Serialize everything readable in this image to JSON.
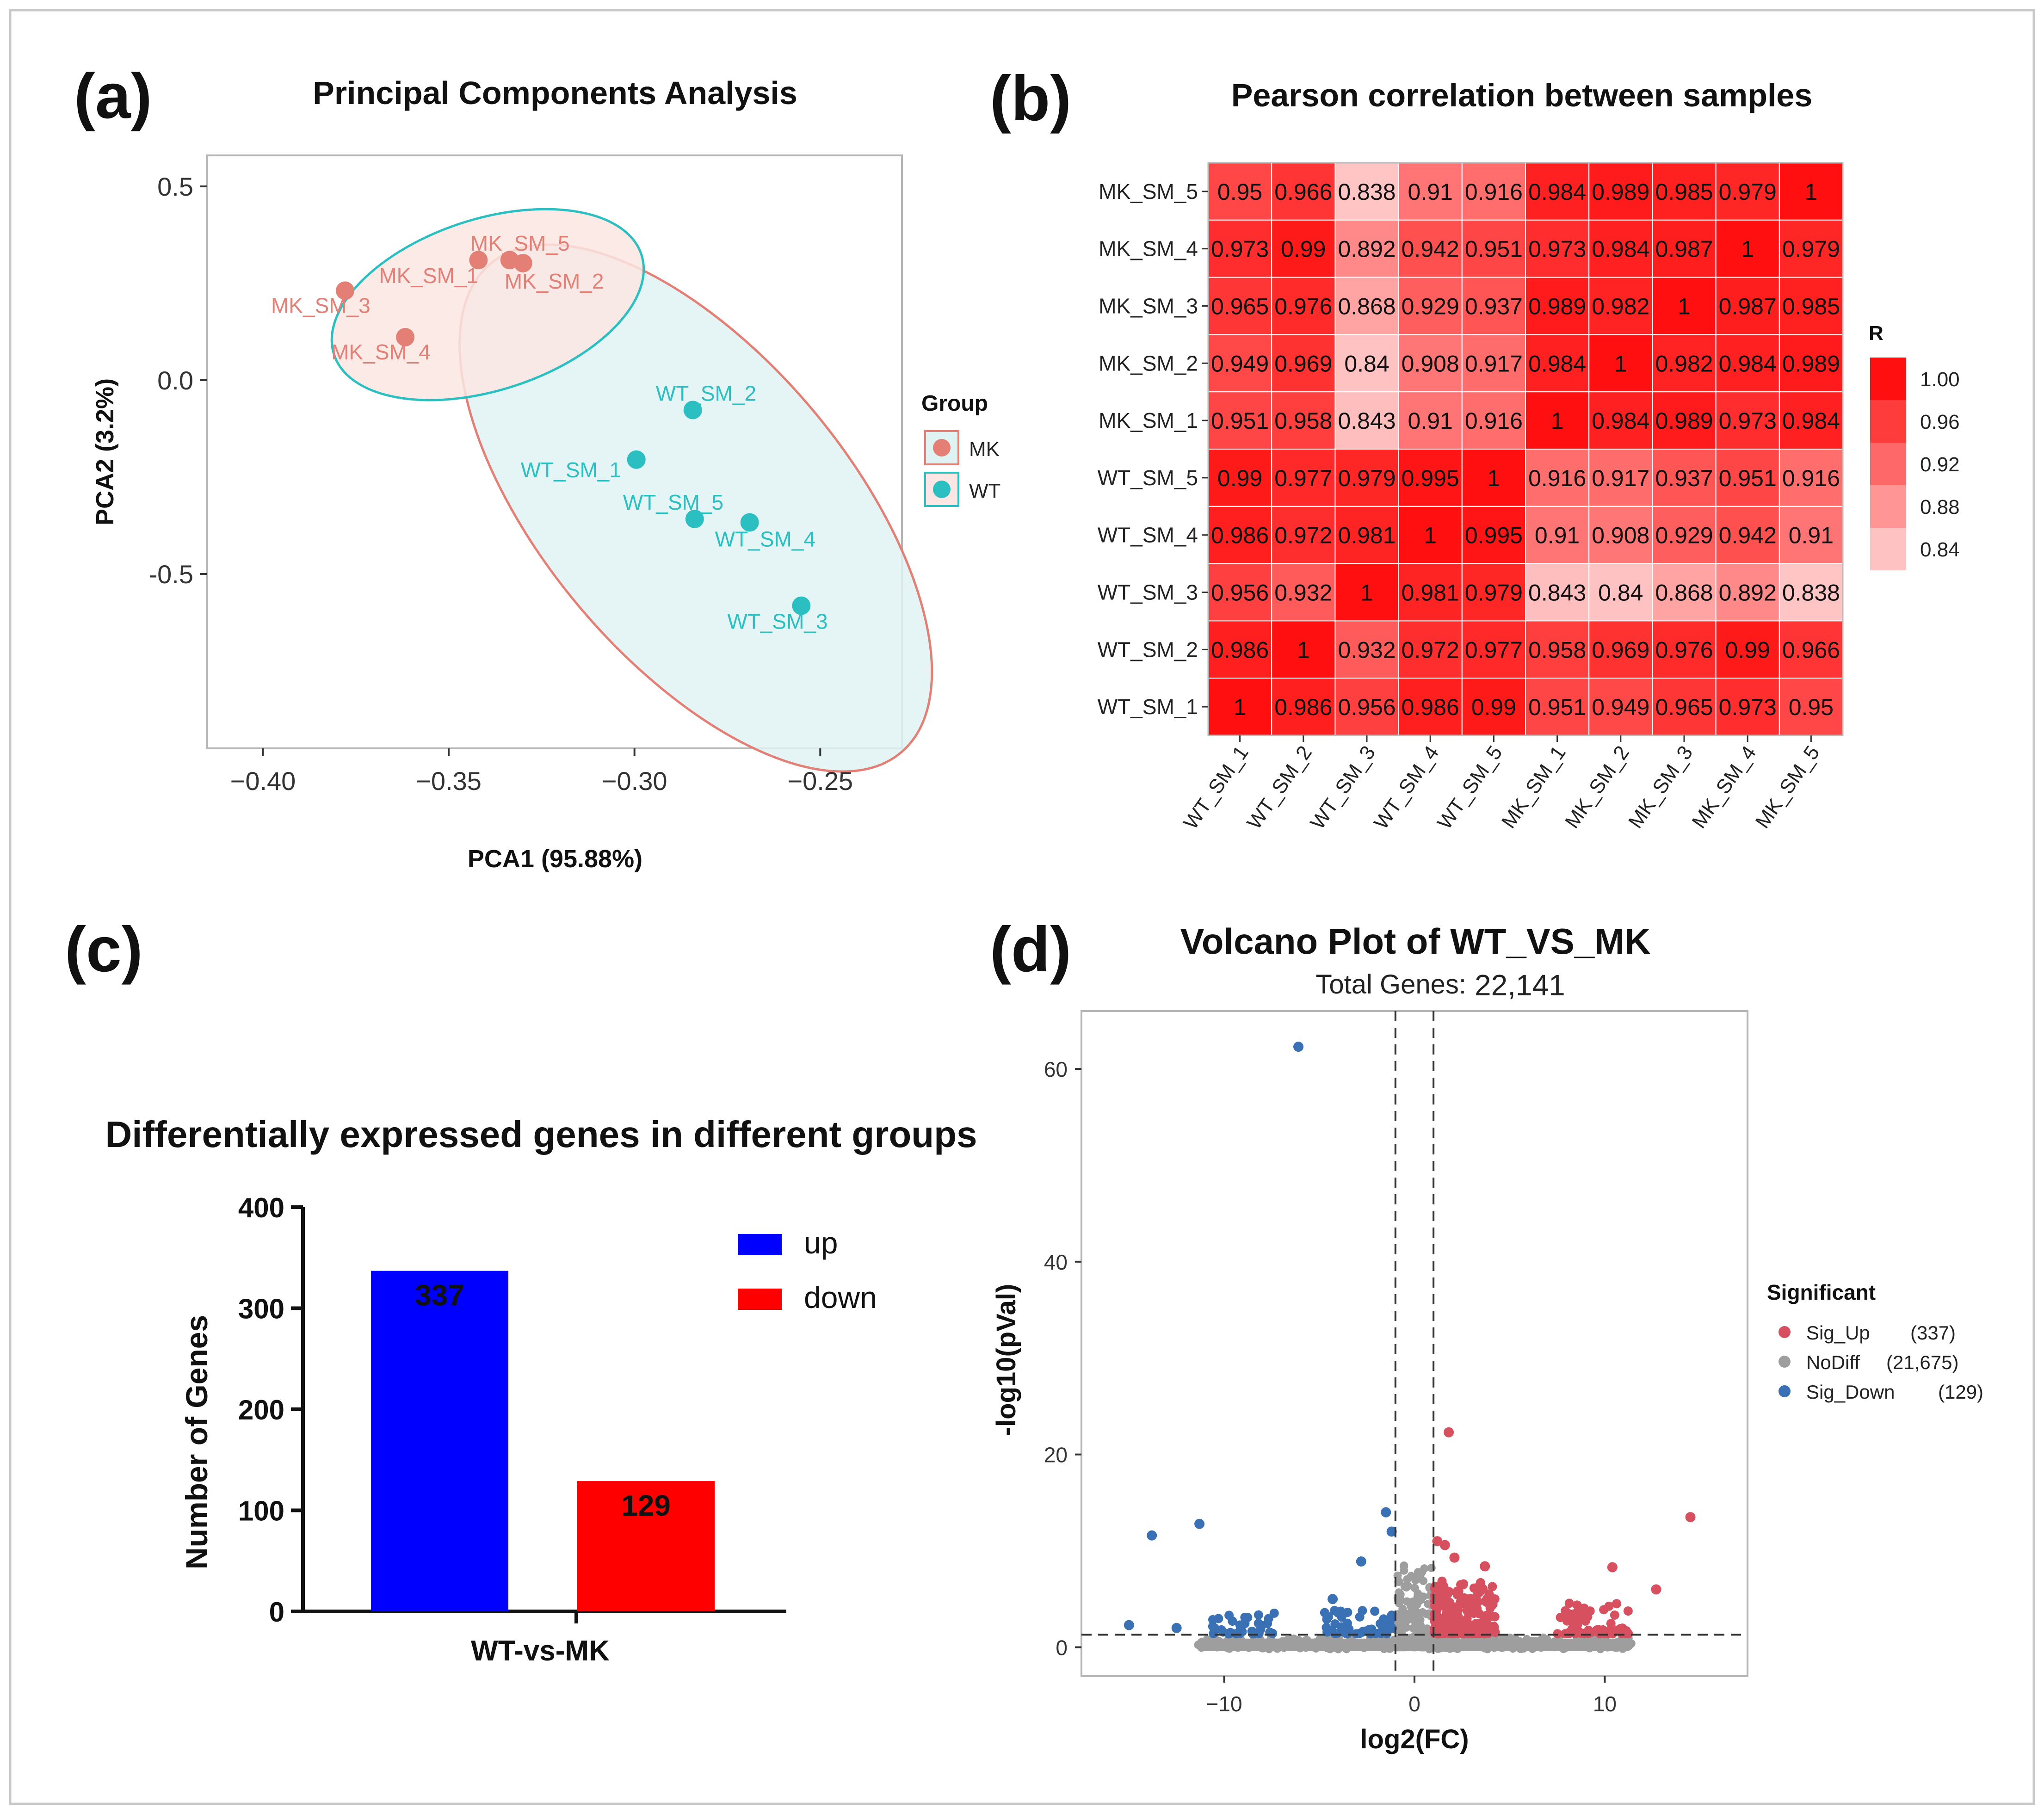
{
  "panels": {
    "a": {
      "label": "(a)",
      "chart_data": {
        "type": "scatter",
        "title": "Principal Components Analysis",
        "xlabel": "PCA1 (95.88%)",
        "ylabel": "PCA2 (3.2%)",
        "xlim": [
          -0.415,
          -0.228
        ],
        "ylim": [
          -0.95,
          0.58
        ],
        "xticks": [
          -0.4,
          -0.35,
          -0.3,
          -0.25
        ],
        "xtick_labels": [
          "−0.40",
          "−0.35",
          "−0.30",
          "−0.25"
        ],
        "yticks": [
          0.5,
          0.0,
          -0.5
        ],
        "ytick_labels": [
          "0.5",
          "0.0",
          "-0.5"
        ],
        "legend_title": "Group",
        "series": [
          {
            "name": "WT",
            "color": "#2bbfc1",
            "fill": "#fbe6e3",
            "points": [
              {
                "label": "WT_SM_1",
                "x": -0.2995,
                "y": -0.205
              },
              {
                "label": "WT_SM_2",
                "x": -0.2843,
                "y": -0.077
              },
              {
                "label": "WT_SM_3",
                "x": -0.2551,
                "y": -0.582
              },
              {
                "label": "WT_SM_4",
                "x": -0.269,
                "y": -0.367
              },
              {
                "label": "WT_SM_5",
                "x": -0.2838,
                "y": -0.358
              }
            ]
          },
          {
            "name": "MK",
            "color": "#e47f76",
            "fill": "#e0f3f3",
            "points": [
              {
                "label": "MK_SM_1",
                "x": -0.342,
                "y": 0.31
              },
              {
                "label": "MK_SM_2",
                "x": -0.33,
                "y": 0.302
              },
              {
                "label": "MK_SM_3",
                "x": -0.3779,
                "y": 0.231
              },
              {
                "label": "MK_SM_4",
                "x": -0.3617,
                "y": 0.111
              },
              {
                "label": "MK_SM_5",
                "x": -0.3336,
                "y": 0.31
              }
            ]
          }
        ]
      }
    },
    "b": {
      "label": "(b)",
      "chart_data": {
        "type": "heatmap",
        "title": "Pearson correlation between samples",
        "legend_title": "R",
        "legend_ticks": [
          "1.00",
          "0.96",
          "0.92",
          "0.88",
          "0.84"
        ],
        "rows": [
          "MK_SM_5",
          "MK_SM_4",
          "MK_SM_3",
          "MK_SM_2",
          "MK_SM_1",
          "WT_SM_5",
          "WT_SM_4",
          "WT_SM_3",
          "WT_SM_2",
          "WT_SM_1"
        ],
        "cols": [
          "WT_SM_1",
          "WT_SM_2",
          "WT_SM_3",
          "WT_SM_4",
          "WT_SM_5",
          "MK_SM_1",
          "MK_SM_2",
          "MK_SM_3",
          "MK_SM_4",
          "MK_SM_5"
        ],
        "values": [
          [
            "0.95",
            "0.966",
            "0.838",
            "0.91",
            "0.916",
            "0.984",
            "0.989",
            "0.985",
            "0.979",
            "1"
          ],
          [
            "0.973",
            "0.99",
            "0.892",
            "0.942",
            "0.951",
            "0.973",
            "0.984",
            "0.987",
            "1",
            "0.979"
          ],
          [
            "0.965",
            "0.976",
            "0.868",
            "0.929",
            "0.937",
            "0.989",
            "0.982",
            "1",
            "0.987",
            "0.985"
          ],
          [
            "0.949",
            "0.969",
            "0.84",
            "0.908",
            "0.917",
            "0.984",
            "1",
            "0.982",
            "0.984",
            "0.989"
          ],
          [
            "0.951",
            "0.958",
            "0.843",
            "0.91",
            "0.916",
            "1",
            "0.984",
            "0.989",
            "0.973",
            "0.984"
          ],
          [
            "0.99",
            "0.977",
            "0.979",
            "0.995",
            "1",
            "0.916",
            "0.917",
            "0.937",
            "0.951",
            "0.916"
          ],
          [
            "0.986",
            "0.972",
            "0.981",
            "1",
            "0.995",
            "0.91",
            "0.908",
            "0.929",
            "0.942",
            "0.91"
          ],
          [
            "0.956",
            "0.932",
            "1",
            "0.981",
            "0.979",
            "0.843",
            "0.84",
            "0.868",
            "0.892",
            "0.838"
          ],
          [
            "0.986",
            "1",
            "0.932",
            "0.972",
            "0.977",
            "0.958",
            "0.969",
            "0.976",
            "0.99",
            "0.966"
          ],
          [
            "1",
            "0.986",
            "0.956",
            "0.986",
            "0.99",
            "0.951",
            "0.949",
            "0.965",
            "0.973",
            "0.95"
          ]
        ]
      }
    },
    "c": {
      "label": "(c)",
      "chart_data": {
        "type": "bar",
        "title": "Differentially expressed genes in different groups",
        "ylabel": "Number of Genes",
        "xlabel": "WT-vs-MK",
        "ylim": [
          0,
          400
        ],
        "yticks": [
          0,
          100,
          200,
          300,
          400
        ],
        "ytick_labels": [
          "0",
          "100",
          "200",
          "300",
          "400"
        ],
        "series": [
          {
            "name": "up",
            "value": 337,
            "value_label": "337",
            "color": "#0000ff"
          },
          {
            "name": "down",
            "value": 129,
            "value_label": "129",
            "color": "#ff0000"
          }
        ]
      }
    },
    "d": {
      "label": "(d)",
      "chart_data": {
        "type": "scatter",
        "title": "Volcano Plot of WT_VS_MK",
        "subtitle_label": "Total Genes:",
        "subtitle_value": "22,141",
        "xlabel": "log2(FC)",
        "ylabel": "-log10(pVal)",
        "xlim": [
          -17.5,
          17.5
        ],
        "ylim": [
          -3,
          66
        ],
        "xticks": [
          -10,
          0,
          10
        ],
        "xtick_labels": [
          "−10",
          "0",
          "10"
        ],
        "yticks": [
          0,
          20,
          40,
          60
        ],
        "ytick_labels": [
          "0",
          "20",
          "40",
          "60"
        ],
        "fc_threshold": 1,
        "p_threshold": 1.3,
        "legend_title": "Significant",
        "legend": [
          {
            "name": "Sig_Up",
            "count": "(337)",
            "color": "#d6505f"
          },
          {
            "name": "NoDiff",
            "count": "(21,675)",
            "color": "#9e9e9e"
          },
          {
            "name": "Sig_Down",
            "count": "(129)",
            "color": "#3a70b4"
          }
        ],
        "highlighted_points": [
          {
            "series": "Sig_Down",
            "x": -6.1,
            "y": 62.3
          },
          {
            "series": "Sig_Down",
            "x": -11.3,
            "y": 12.8
          },
          {
            "series": "Sig_Down",
            "x": -13.8,
            "y": 11.6
          },
          {
            "series": "Sig_Down",
            "x": -1.5,
            "y": 14.0
          },
          {
            "series": "Sig_Down",
            "x": -1.2,
            "y": 12.0
          },
          {
            "series": "Sig_Down",
            "x": -2.8,
            "y": 8.9
          },
          {
            "series": "Sig_Down",
            "x": -4.3,
            "y": 5.0
          },
          {
            "series": "Sig_Down",
            "x": -4.0,
            "y": 3.6
          },
          {
            "series": "Sig_Down",
            "x": -15.0,
            "y": 2.3
          },
          {
            "series": "Sig_Down",
            "x": -12.5,
            "y": 2.0
          },
          {
            "series": "Sig_Up",
            "x": 1.8,
            "y": 22.3
          },
          {
            "series": "Sig_Up",
            "x": 14.5,
            "y": 13.5
          },
          {
            "series": "Sig_Up",
            "x": 10.4,
            "y": 8.3
          },
          {
            "series": "Sig_Up",
            "x": 12.7,
            "y": 6.0
          },
          {
            "series": "Sig_Up",
            "x": 3.7,
            "y": 8.4
          },
          {
            "series": "Sig_Up",
            "x": 1.6,
            "y": 10.6
          },
          {
            "series": "Sig_Up",
            "x": 1.2,
            "y": 11.0
          },
          {
            "series": "Sig_Up",
            "x": 2.1,
            "y": 9.3
          }
        ]
      }
    }
  }
}
